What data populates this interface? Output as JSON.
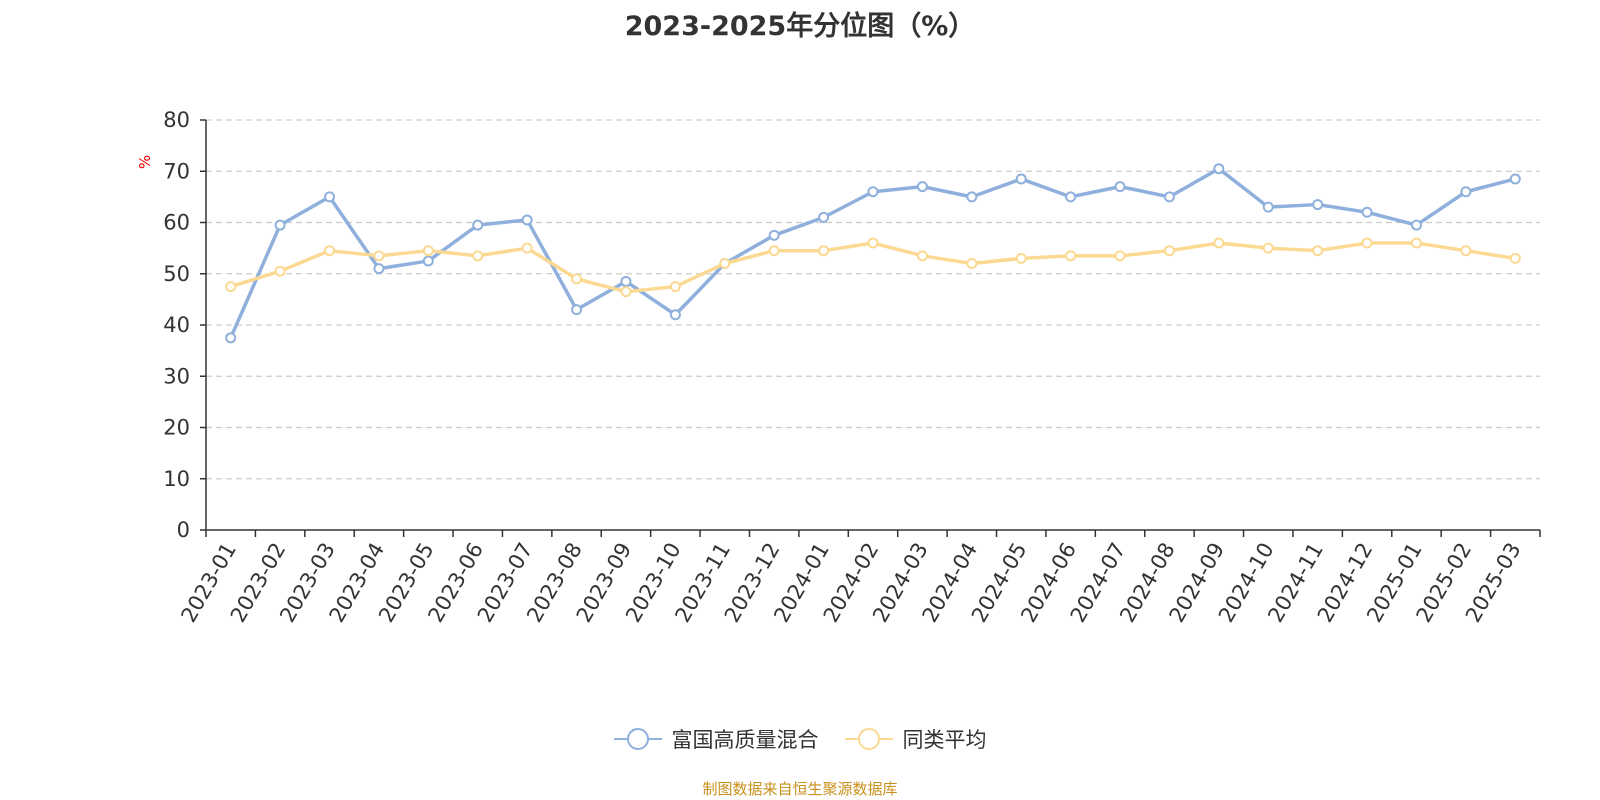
{
  "title": "2023-2025年分位图（%）",
  "source": "制图数据来自恒生聚源数据库",
  "colors": {
    "series1": "#8fb0dc",
    "series2": "#fcd993",
    "axis": "#333333",
    "grid": "#cccccc",
    "unit": "#ff0000",
    "source": "#c8901c",
    "title": "#333333"
  },
  "chart_data": {
    "type": "line",
    "ylabel": "%",
    "ylim": [
      0,
      80
    ],
    "yticks": [
      0,
      10,
      20,
      30,
      40,
      50,
      60,
      70,
      80
    ],
    "grid": true,
    "legend_position": "bottom",
    "categories": [
      "2023-01",
      "2023-02",
      "2023-03",
      "2023-04",
      "2023-05",
      "2023-06",
      "2023-07",
      "2023-08",
      "2023-09",
      "2023-10",
      "2023-11",
      "2023-12",
      "2024-01",
      "2024-02",
      "2024-03",
      "2024-04",
      "2024-05",
      "2024-06",
      "2024-07",
      "2024-08",
      "2024-09",
      "2024-10",
      "2024-11",
      "2024-12",
      "2025-01",
      "2025-02",
      "2025-03"
    ],
    "series": [
      {
        "name": "富国高质量混合",
        "values": [
          37.5,
          59.5,
          65,
          51,
          52.5,
          59.5,
          60.5,
          43,
          48.5,
          42,
          52,
          57.5,
          61,
          66,
          67,
          65,
          68.5,
          65,
          67,
          65,
          70.5,
          63,
          63.5,
          62,
          59.5,
          66,
          68.5
        ]
      },
      {
        "name": "同类平均",
        "values": [
          47.5,
          50.5,
          54.5,
          53.5,
          54.5,
          53.5,
          55,
          49,
          46.5,
          47.5,
          52,
          54.5,
          54.5,
          56,
          53.5,
          52,
          53,
          53.5,
          53.5,
          54.5,
          56,
          55,
          54.5,
          56,
          56,
          54.5,
          53
        ]
      }
    ]
  }
}
